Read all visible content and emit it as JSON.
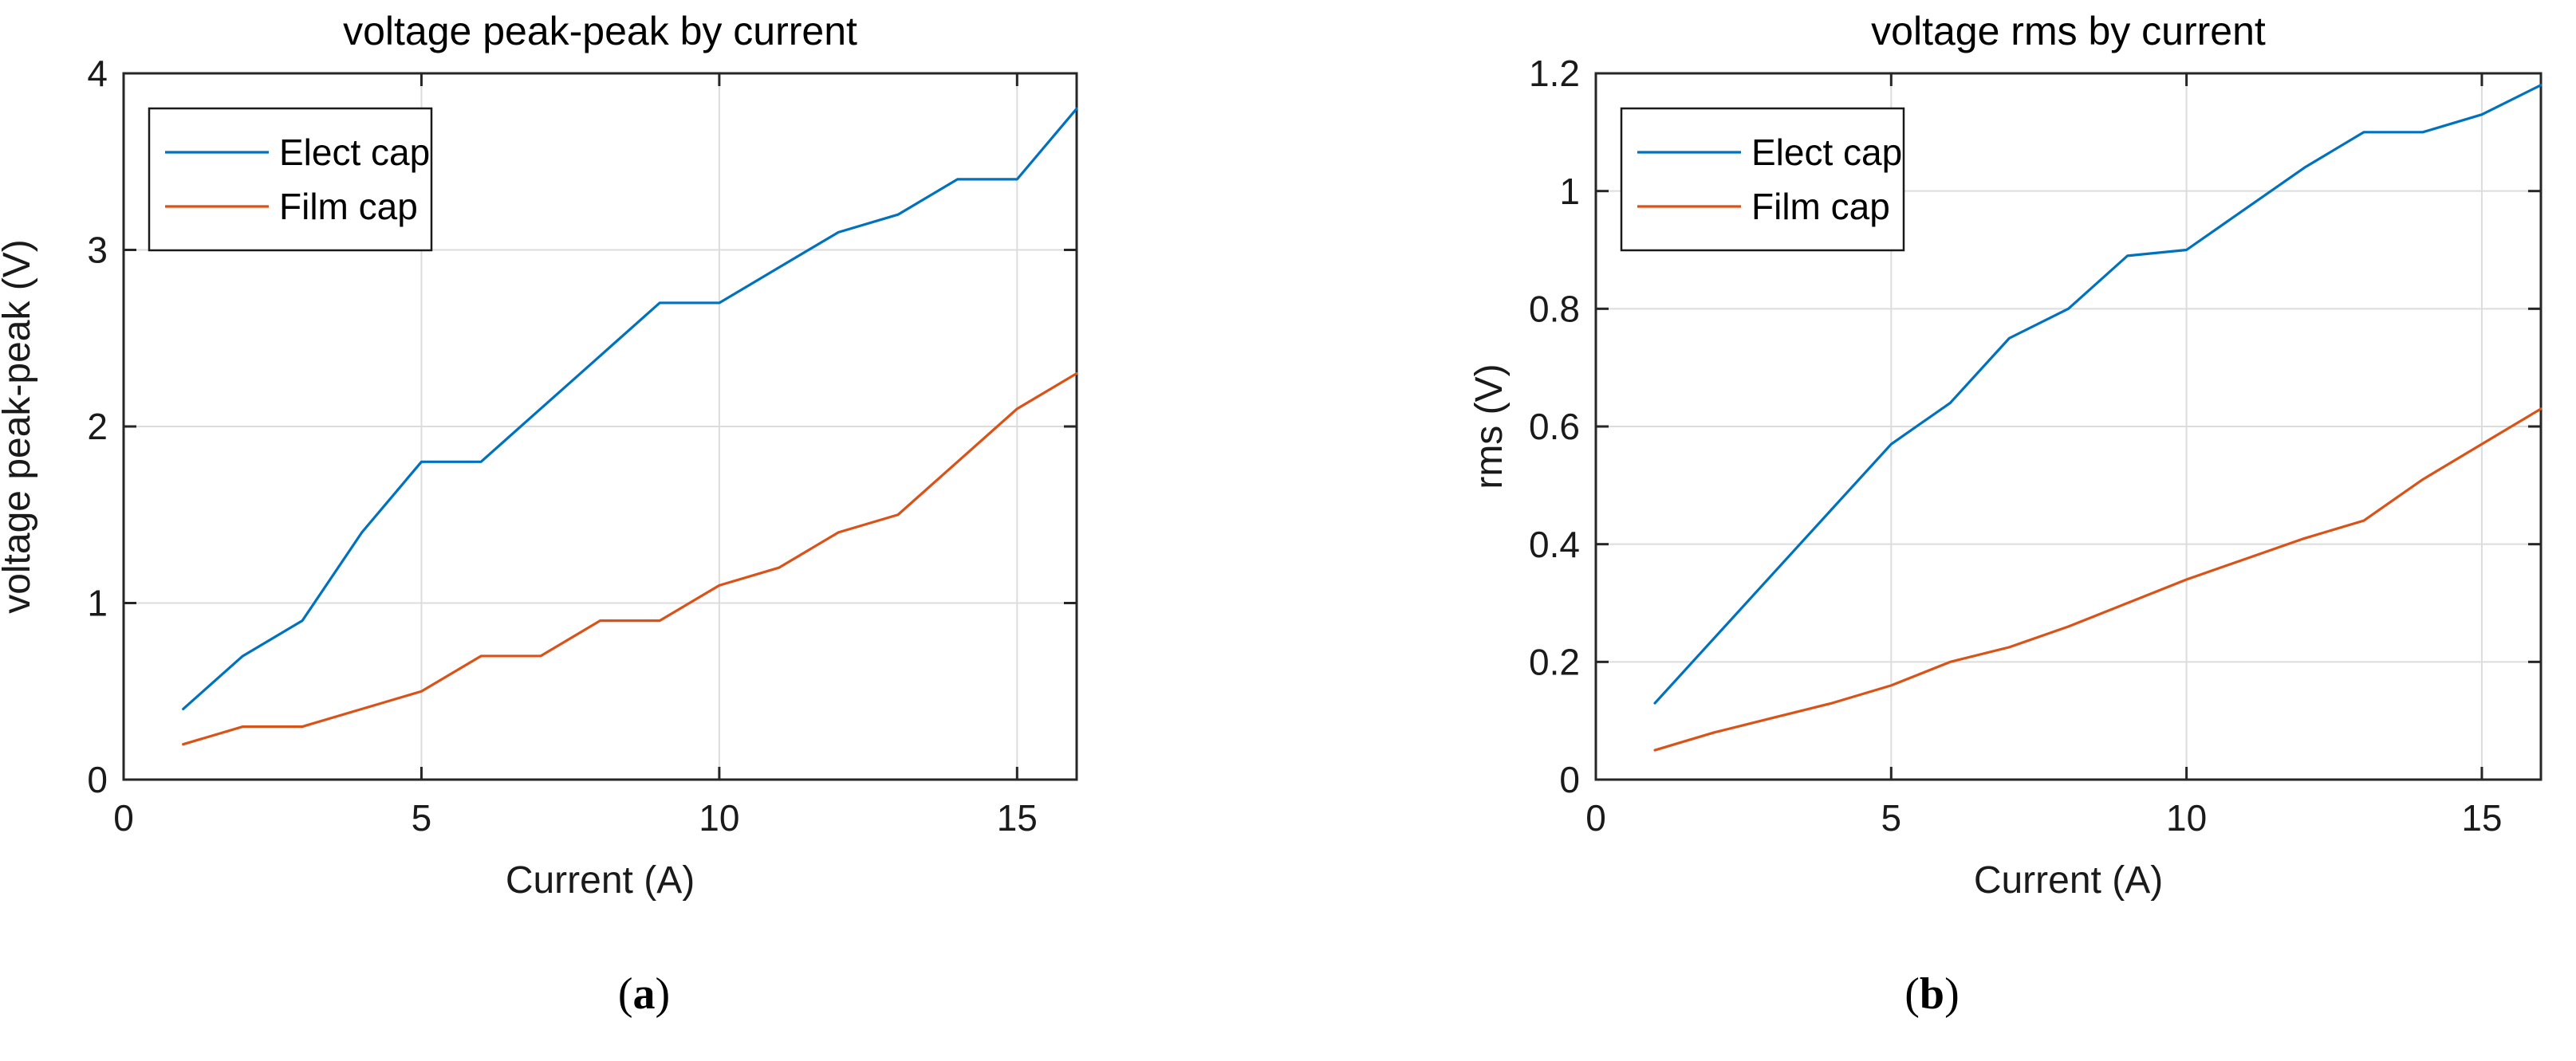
{
  "figure": {
    "background": "#ffffff",
    "axis_color": "#262626",
    "grid_color": "#dcdcdc",
    "text_color": "#1a1a1a"
  },
  "chart_data": [
    {
      "type": "line",
      "title": "voltage peak-peak by current",
      "xlabel": "Current (A)",
      "ylabel": "voltage peak-peak (V)",
      "xlim": [
        0,
        16
      ],
      "ylim": [
        0,
        4
      ],
      "xticks": [
        0,
        5,
        10,
        15
      ],
      "xtick_labels": [
        "0",
        "5",
        "10",
        "15"
      ],
      "yticks": [
        0,
        1,
        2,
        3,
        4
      ],
      "ytick_labels": [
        "0",
        "1",
        "2",
        "3",
        "4"
      ],
      "grid": true,
      "legend_position": "top-left",
      "caption_open": "(",
      "caption_letter": "a",
      "caption_close": ")",
      "x": [
        1,
        2,
        3,
        4,
        5,
        6,
        7,
        8,
        9,
        10,
        11,
        12,
        13,
        14,
        15,
        16
      ],
      "series": [
        {
          "name": "Elect cap",
          "color": "#0072BD",
          "values": [
            0.4,
            0.7,
            0.9,
            1.4,
            1.8,
            1.8,
            2.1,
            2.4,
            2.7,
            2.7,
            2.9,
            3.1,
            3.2,
            3.4,
            3.4,
            3.8
          ]
        },
        {
          "name": "Film cap",
          "color": "#D95319",
          "values": [
            0.2,
            0.3,
            0.3,
            0.4,
            0.5,
            0.7,
            0.7,
            0.9,
            0.9,
            1.1,
            1.2,
            1.4,
            1.5,
            1.8,
            2.1,
            2.3
          ]
        }
      ]
    },
    {
      "type": "line",
      "title": "voltage rms by current",
      "xlabel": "Current (A)",
      "ylabel": "rms (V)",
      "xlim": [
        0,
        16
      ],
      "ylim": [
        0,
        1.2
      ],
      "xticks": [
        0,
        5,
        10,
        15
      ],
      "xtick_labels": [
        "0",
        "5",
        "10",
        "15"
      ],
      "yticks": [
        0,
        0.2,
        0.4,
        0.6,
        0.8,
        1,
        1.2
      ],
      "ytick_labels": [
        "0",
        "0.2",
        "0.4",
        "0.6",
        "0.8",
        "1",
        "1.2"
      ],
      "grid": true,
      "legend_position": "top-left",
      "caption_open": "(",
      "caption_letter": "b",
      "caption_close": ")",
      "x": [
        1,
        2,
        3,
        4,
        5,
        6,
        7,
        8,
        9,
        10,
        11,
        12,
        13,
        14,
        15,
        16
      ],
      "series": [
        {
          "name": "Elect cap",
          "color": "#0072BD",
          "values": [
            0.13,
            0.24,
            0.35,
            0.46,
            0.57,
            0.64,
            0.75,
            0.8,
            0.89,
            0.9,
            0.97,
            1.04,
            1.1,
            1.1,
            1.13,
            1.18
          ]
        },
        {
          "name": "Film cap",
          "color": "#D95319",
          "values": [
            0.05,
            0.08,
            0.105,
            0.13,
            0.16,
            0.2,
            0.225,
            0.26,
            0.3,
            0.34,
            0.375,
            0.41,
            0.44,
            0.51,
            0.57,
            0.63
          ]
        }
      ]
    }
  ]
}
